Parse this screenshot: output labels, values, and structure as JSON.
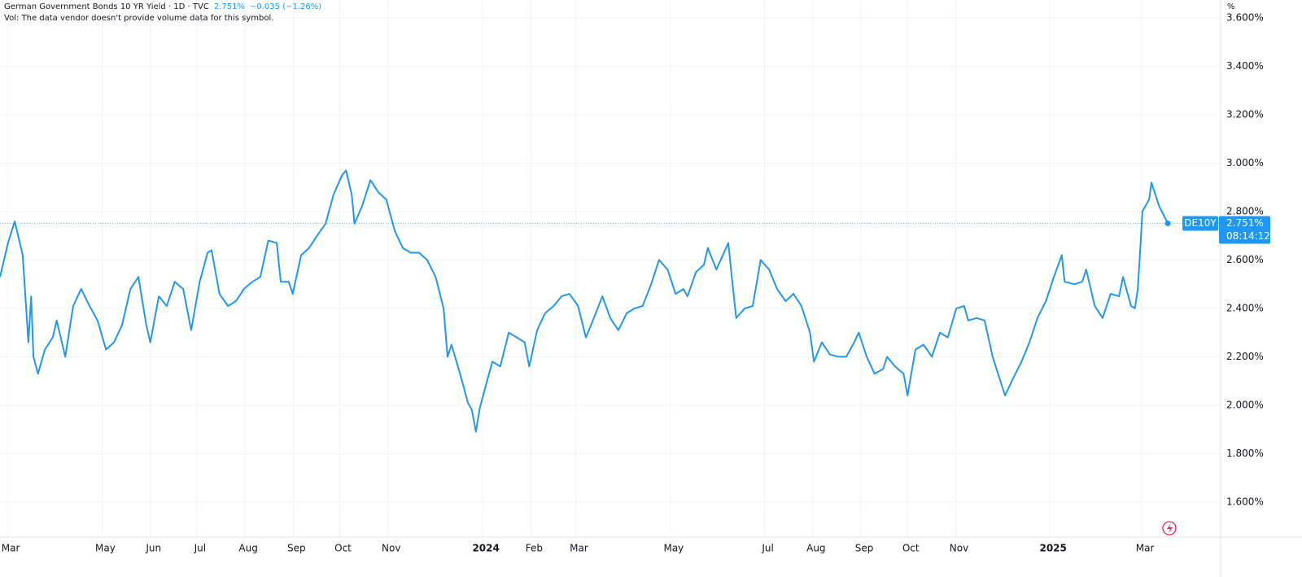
{
  "chart_data": {
    "type": "line",
    "title": "German Government Bonds 10 YR Yield · 1D · TVC",
    "change_label": "−0.035 (−1.26%)",
    "subtitle": "Vol: The data vendor doesn't provide volume data for this symbol.",
    "y_unit": "%",
    "last_price": {
      "label": "2.751%",
      "countdown": "08:14:12"
    },
    "series": [
      {
        "name": "DE10Y",
        "color": "#2196f3",
        "x": [
          2023.149,
          2023.163,
          2023.175,
          2023.189,
          2023.199,
          2023.204,
          2023.208,
          2023.216,
          2023.228,
          2023.242,
          2023.249,
          2023.264,
          2023.278,
          2023.292,
          2023.307,
          2023.321,
          2023.336,
          2023.35,
          2023.364,
          2023.379,
          2023.393,
          2023.407,
          2023.414,
          2023.429,
          2023.443,
          2023.457,
          2023.472,
          2023.486,
          2023.501,
          2023.515,
          2023.522,
          2023.536,
          2023.551,
          2023.565,
          2023.579,
          2023.594,
          2023.608,
          2023.622,
          2023.637,
          2023.644,
          2023.658,
          2023.665,
          2023.68,
          2023.694,
          2023.708,
          2023.723,
          2023.737,
          2023.752,
          2023.759,
          2023.769,
          2023.774,
          2023.787,
          2023.802,
          2023.816,
          2023.83,
          2023.845,
          2023.859,
          2023.873,
          2023.888,
          2023.902,
          2023.917,
          2023.931,
          2023.938,
          2023.945,
          2023.96,
          2023.974,
          2023.981,
          2023.988,
          2023.995,
          2024.003,
          2024.017,
          2024.031,
          2024.046,
          2024.06,
          2024.074,
          2024.082,
          2024.096,
          2024.11,
          2024.125,
          2024.139,
          2024.153,
          2024.168,
          2024.182,
          2024.196,
          2024.211,
          2024.225,
          2024.239,
          2024.254,
          2024.268,
          2024.282,
          2024.297,
          2024.311,
          2024.326,
          2024.34,
          2024.354,
          2024.361,
          2024.376,
          2024.39,
          2024.397,
          2024.412,
          2024.433,
          2024.44,
          2024.447,
          2024.462,
          2024.476,
          2024.49,
          2024.505,
          2024.519,
          2024.534,
          2024.548,
          2024.562,
          2024.577,
          2024.584,
          2024.598,
          2024.612,
          2024.627,
          2024.641,
          2024.655,
          2024.663,
          2024.677,
          2024.691,
          2024.706,
          2024.713,
          2024.727,
          2024.742,
          2024.749,
          2024.763,
          2024.777,
          2024.792,
          2024.806,
          2024.82,
          2024.835,
          2024.849,
          2024.856,
          2024.871,
          2024.885,
          2024.899,
          2024.914,
          2024.921,
          2024.935,
          2024.95,
          2024.964,
          2024.978,
          2024.993,
          2025.007,
          2025.021,
          2025.026,
          2025.043,
          2025.057,
          2025.064,
          2025.079,
          2025.093,
          2025.107,
          2025.122,
          2025.129,
          2025.143,
          2025.15,
          2025.155,
          2025.16,
          2025.163,
          2025.175,
          2025.179,
          2025.193,
          2025.208
        ],
        "values": [
          2.53,
          2.67,
          2.76,
          2.62,
          2.26,
          2.45,
          2.2,
          2.13,
          2.23,
          2.28,
          2.35,
          2.2,
          2.41,
          2.48,
          2.41,
          2.35,
          2.23,
          2.26,
          2.33,
          2.48,
          2.53,
          2.33,
          2.26,
          2.45,
          2.41,
          2.51,
          2.48,
          2.31,
          2.51,
          2.63,
          2.64,
          2.46,
          2.41,
          2.43,
          2.48,
          2.51,
          2.53,
          2.68,
          2.67,
          2.51,
          2.51,
          2.46,
          2.62,
          2.65,
          2.7,
          2.75,
          2.87,
          2.95,
          2.97,
          2.87,
          2.75,
          2.82,
          2.93,
          2.88,
          2.85,
          2.72,
          2.65,
          2.63,
          2.63,
          2.6,
          2.53,
          2.4,
          2.2,
          2.25,
          2.13,
          2.01,
          1.98,
          1.89,
          1.99,
          2.06,
          2.18,
          2.16,
          2.3,
          2.28,
          2.26,
          2.16,
          2.31,
          2.38,
          2.41,
          2.45,
          2.46,
          2.41,
          2.28,
          2.36,
          2.45,
          2.36,
          2.31,
          2.38,
          2.4,
          2.41,
          2.5,
          2.6,
          2.56,
          2.46,
          2.48,
          2.45,
          2.55,
          2.58,
          2.65,
          2.56,
          2.67,
          2.51,
          2.36,
          2.4,
          2.41,
          2.6,
          2.56,
          2.48,
          2.43,
          2.46,
          2.41,
          2.3,
          2.18,
          2.26,
          2.21,
          2.2,
          2.2,
          2.26,
          2.3,
          2.2,
          2.13,
          2.15,
          2.2,
          2.16,
          2.13,
          2.04,
          2.23,
          2.25,
          2.2,
          2.3,
          2.28,
          2.4,
          2.41,
          2.35,
          2.36,
          2.35,
          2.2,
          2.09,
          2.04,
          2.11,
          2.18,
          2.26,
          2.36,
          2.43,
          2.53,
          2.62,
          2.51,
          2.5,
          2.51,
          2.56,
          2.41,
          2.36,
          2.46,
          2.45,
          2.53,
          2.41,
          2.4,
          2.48,
          2.67,
          2.8,
          2.85,
          2.92,
          2.82,
          2.751
        ]
      }
    ],
    "xlim": [
      2023.149,
      2025.301
    ],
    "xticks": [
      {
        "value": 2023.162,
        "label": "Mar"
      },
      {
        "value": 2023.329,
        "label": "May"
      },
      {
        "value": 2023.414,
        "label": "Jun"
      },
      {
        "value": 2023.496,
        "label": "Jul"
      },
      {
        "value": 2023.581,
        "label": "Aug"
      },
      {
        "value": 2023.666,
        "label": "Sep"
      },
      {
        "value": 2023.748,
        "label": "Oct"
      },
      {
        "value": 2023.833,
        "label": "Nov"
      },
      2024,
      {
        "value": 2024.085,
        "label": "Feb"
      },
      {
        "value": 2024.164,
        "label": "Mar"
      },
      {
        "value": 2024.331,
        "label": "May"
      },
      {
        "value": 2024.497,
        "label": "Jul"
      },
      {
        "value": 2024.582,
        "label": "Aug"
      },
      {
        "value": 2024.667,
        "label": "Sep"
      },
      {
        "value": 2024.749,
        "label": "Oct"
      },
      {
        "value": 2024.834,
        "label": "Nov"
      },
      2025,
      {
        "value": 2025.162,
        "label": "Mar"
      }
    ],
    "ylim": [
      1.455,
      3.674
    ],
    "yticks": [
      {
        "value": 1.6,
        "label": "1.600%"
      },
      {
        "value": 1.8,
        "label": "1.800%"
      },
      {
        "value": 2.0,
        "label": "2.000%"
      },
      {
        "value": 2.2,
        "label": "2.200%"
      },
      {
        "value": 2.4,
        "label": "2.400%"
      },
      {
        "value": 2.6,
        "label": "2.600%"
      },
      {
        "value": 2.8,
        "label": "2.800%"
      },
      {
        "value": 3.0,
        "label": "3.000%"
      },
      {
        "value": 3.2,
        "label": "3.200%"
      },
      {
        "value": 3.4,
        "label": "3.400%"
      },
      {
        "value": 3.6,
        "label": "3.600%"
      }
    ],
    "grid": true
  }
}
